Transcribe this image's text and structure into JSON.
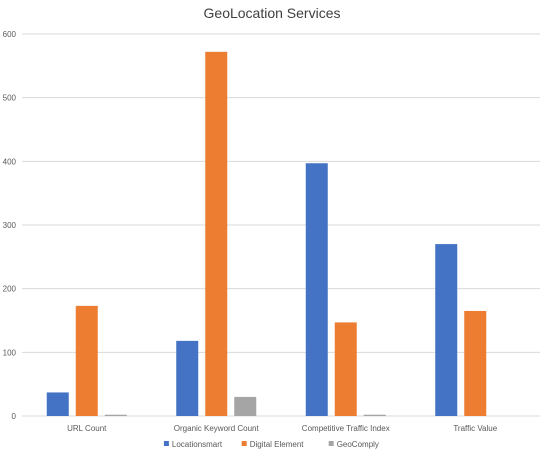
{
  "chart_data": {
    "type": "bar",
    "title": "GeoLocation Services",
    "xlabel": "",
    "ylabel": "",
    "categories": [
      "URL Count",
      "Organic Keyword Count",
      "Competitive Traffic Index",
      "Traffic Value"
    ],
    "series": [
      {
        "name": "Locationsmart",
        "color": "#4472C4",
        "values": [
          37,
          118,
          397,
          270
        ]
      },
      {
        "name": "Digital Element",
        "color": "#ED7D31",
        "values": [
          173,
          572,
          147,
          165
        ]
      },
      {
        "name": "GeoComply",
        "color": "#A5A5A5",
        "values": [
          2,
          30,
          2,
          0
        ]
      }
    ],
    "ylim": [
      0,
      600
    ],
    "yticks": [
      0,
      100,
      200,
      300,
      400,
      500,
      600
    ],
    "grid": true,
    "legend_position": "bottom"
  }
}
